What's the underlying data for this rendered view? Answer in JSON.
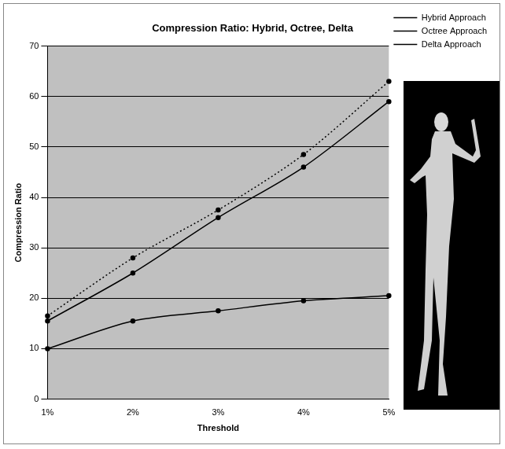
{
  "chart_data": {
    "type": "line",
    "title": "Compression Ratio: Hybrid, Octree, Delta",
    "x_label": "Threshold",
    "y_label": "Compression Ratio",
    "categories": [
      "1%",
      "2%",
      "3%",
      "4%",
      "5%"
    ],
    "series": [
      {
        "name": "Hybrid Approach",
        "color": "#000000",
        "line_style": "dotted",
        "marker": "circle",
        "values": [
          16.5,
          28,
          37.5,
          48.5,
          63
        ]
      },
      {
        "name": "Octree Approach",
        "color": "#000000",
        "line_style": "solid",
        "marker": "circle",
        "values": [
          15.5,
          25,
          36,
          46,
          59
        ]
      },
      {
        "name": "Delta Approach",
        "color": "#000000",
        "line_style": "solid",
        "marker": "circle",
        "values": [
          10,
          15.5,
          17.5,
          19.5,
          20.5
        ]
      }
    ],
    "ylim": [
      0,
      70
    ],
    "yticks": [
      0,
      10,
      20,
      30,
      40,
      50,
      60,
      70
    ],
    "grid": true,
    "legend": "right"
  }
}
